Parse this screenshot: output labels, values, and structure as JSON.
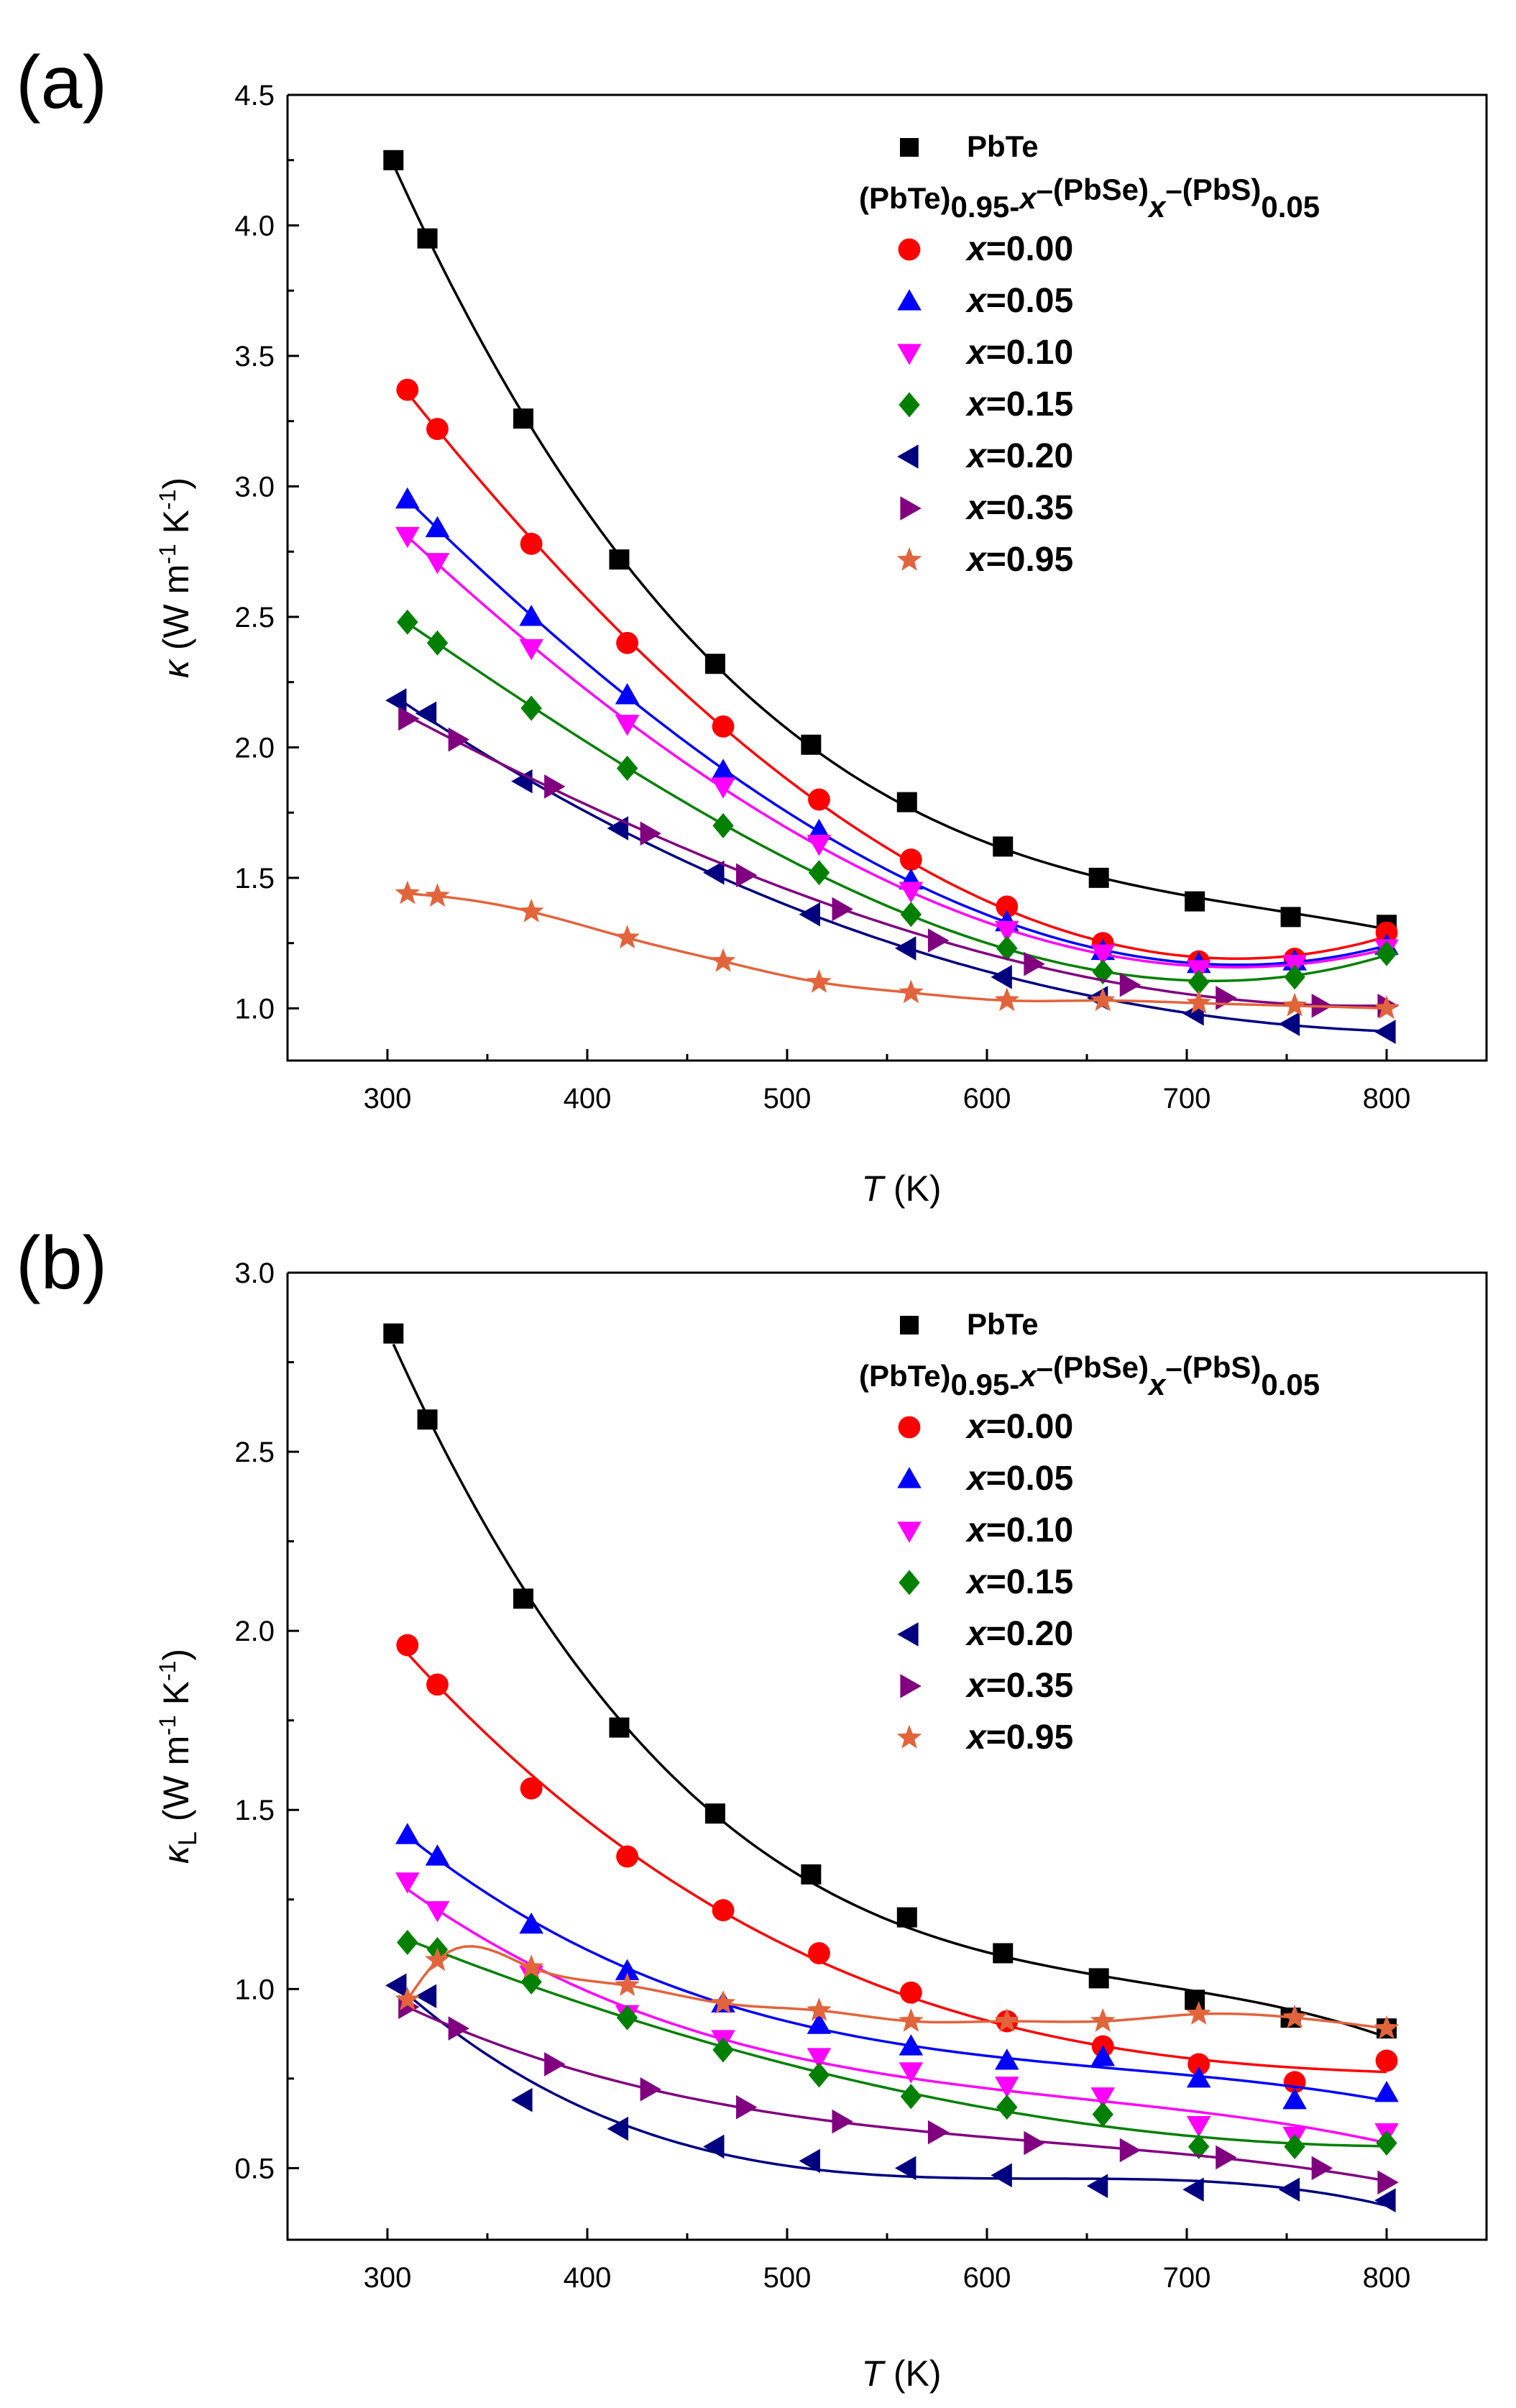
{
  "chart_data": [
    {
      "type": "scatter",
      "panel_label": "(a)",
      "xlabel": {
        "italic": "T",
        "rest": " (K)"
      },
      "ylabel": {
        "symbol": "κ",
        "sub": "",
        "unit": "(W m",
        "exp1": "-1",
        "mid": " K",
        "exp2": "-1",
        "close": ")"
      },
      "xlim": [
        250,
        850
      ],
      "ylim": [
        0.8,
        4.5
      ],
      "x_ticks": [
        300,
        400,
        500,
        600,
        700,
        800
      ],
      "y_ticks": [
        1.0,
        1.5,
        2.0,
        2.5,
        3.0,
        3.5,
        4.0,
        4.5
      ],
      "legend_position": "top-right",
      "legend_header": {
        "a": "(PbTe)",
        "a_sub": "0.95-",
        "a_sub_x": "x",
        "b": "–(PbSe)",
        "b_sub_x": "x",
        "c": "–(PbS)",
        "c_sub": "0.05"
      },
      "series": [
        {
          "name": "PbTe",
          "label_prefix": "",
          "label_value": "PbTe",
          "marker": "square",
          "color": "#000000",
          "x": [
            303,
            320,
            368,
            416,
            464,
            512,
            560,
            608,
            656,
            704,
            752,
            800
          ],
          "y": [
            4.25,
            3.95,
            3.26,
            2.72,
            2.32,
            2.01,
            1.79,
            1.62,
            1.5,
            1.41,
            1.35,
            1.32
          ]
        },
        {
          "name": "x=0.00",
          "label_prefix": "x",
          "label_value": "=0.00",
          "marker": "circle",
          "color": "#ff0000",
          "x": [
            310,
            325,
            372,
            420,
            468,
            516,
            562,
            610,
            658,
            706,
            754,
            800
          ],
          "y": [
            3.37,
            3.22,
            2.78,
            2.4,
            2.08,
            1.8,
            1.57,
            1.39,
            1.25,
            1.18,
            1.19,
            1.29
          ]
        },
        {
          "name": "x=0.05",
          "label_prefix": "x",
          "label_value": "=0.05",
          "marker": "triangle-up",
          "color": "#0000ff",
          "x": [
            310,
            325,
            372,
            420,
            468,
            516,
            562,
            610,
            658,
            706,
            754,
            800
          ],
          "y": [
            2.95,
            2.84,
            2.5,
            2.2,
            1.91,
            1.68,
            1.49,
            1.33,
            1.22,
            1.17,
            1.18,
            1.24
          ]
        },
        {
          "name": "x=0.10",
          "label_prefix": "x",
          "label_value": "=0.10",
          "marker": "triangle-down",
          "color": "#ff00ff",
          "x": [
            310,
            325,
            372,
            420,
            468,
            516,
            562,
            610,
            658,
            706,
            754,
            800
          ],
          "y": [
            2.81,
            2.71,
            2.38,
            2.09,
            1.85,
            1.63,
            1.45,
            1.3,
            1.21,
            1.15,
            1.17,
            1.23
          ]
        },
        {
          "name": "x=0.15",
          "label_prefix": "x",
          "label_value": "=0.15",
          "marker": "diamond",
          "color": "#008000",
          "x": [
            310,
            325,
            372,
            420,
            468,
            516,
            562,
            610,
            658,
            706,
            754,
            800
          ],
          "y": [
            2.48,
            2.4,
            2.15,
            1.92,
            1.7,
            1.52,
            1.36,
            1.23,
            1.14,
            1.1,
            1.12,
            1.21
          ]
        },
        {
          "name": "x=0.20",
          "label_prefix": "x",
          "label_value": "=0.20",
          "marker": "triangle-left",
          "color": "#000080",
          "x": [
            305,
            320,
            368,
            416,
            464,
            512,
            560,
            608,
            656,
            704,
            752,
            800
          ],
          "y": [
            2.18,
            2.13,
            1.87,
            1.69,
            1.52,
            1.36,
            1.23,
            1.12,
            1.04,
            0.98,
            0.94,
            0.91
          ]
        },
        {
          "name": "x=0.35",
          "label_prefix": "x",
          "label_value": "=0.35",
          "marker": "triangle-right",
          "color": "#800080",
          "x": [
            310,
            335,
            383,
            431,
            479,
            527,
            575,
            623,
            671,
            719,
            767,
            800
          ],
          "y": [
            2.11,
            2.03,
            1.85,
            1.67,
            1.51,
            1.38,
            1.26,
            1.17,
            1.09,
            1.04,
            1.01,
            1.01
          ]
        },
        {
          "name": "x=0.95",
          "label_prefix": "x",
          "label_value": "=0.95",
          "marker": "star",
          "color": "#e2643c",
          "x": [
            310,
            325,
            372,
            420,
            468,
            516,
            562,
            610,
            658,
            706,
            754,
            800
          ],
          "y": [
            1.44,
            1.43,
            1.37,
            1.27,
            1.18,
            1.1,
            1.06,
            1.03,
            1.03,
            1.02,
            1.01,
            1.0
          ]
        }
      ]
    },
    {
      "type": "scatter",
      "panel_label": "(b)",
      "xlabel": {
        "italic": "T",
        "rest": " (K)"
      },
      "ylabel": {
        "symbol": "κ",
        "sub": "L",
        "unit": "(W m",
        "exp1": "-1",
        "mid": " K",
        "exp2": "-1",
        "close": ")"
      },
      "xlim": [
        250,
        850
      ],
      "ylim": [
        0.3,
        3.0
      ],
      "x_ticks": [
        300,
        400,
        500,
        600,
        700,
        800
      ],
      "y_ticks": [
        0.5,
        1.0,
        1.5,
        2.0,
        2.5,
        3.0
      ],
      "legend_position": "top-right",
      "legend_header": {
        "a": "(PbTe)",
        "a_sub": "0.95-",
        "a_sub_x": "x",
        "b": "–(PbSe)",
        "b_sub_x": "x",
        "c": "–(PbS)",
        "c_sub": "0.05"
      },
      "series": [
        {
          "name": "PbTe",
          "label_prefix": "",
          "label_value": "PbTe",
          "marker": "square",
          "color": "#000000",
          "x": [
            303,
            320,
            368,
            416,
            464,
            512,
            560,
            608,
            656,
            704,
            752,
            800
          ],
          "y": [
            2.83,
            2.59,
            2.09,
            1.73,
            1.49,
            1.32,
            1.2,
            1.1,
            1.03,
            0.97,
            0.92,
            0.89
          ]
        },
        {
          "name": "x=0.00",
          "label_prefix": "x",
          "label_value": "=0.00",
          "marker": "circle",
          "color": "#ff0000",
          "x": [
            310,
            325,
            372,
            420,
            468,
            516,
            562,
            610,
            658,
            706,
            754,
            800
          ],
          "y": [
            1.96,
            1.85,
            1.56,
            1.37,
            1.22,
            1.1,
            0.99,
            0.91,
            0.84,
            0.79,
            0.74,
            0.8
          ]
        },
        {
          "name": "x=0.05",
          "label_prefix": "x",
          "label_value": "=0.05",
          "marker": "triangle-up",
          "color": "#0000ff",
          "x": [
            310,
            325,
            372,
            420,
            468,
            516,
            562,
            610,
            658,
            706,
            754,
            800
          ],
          "y": [
            1.43,
            1.37,
            1.18,
            1.05,
            0.96,
            0.9,
            0.84,
            0.8,
            0.81,
            0.75,
            0.69,
            0.71
          ]
        },
        {
          "name": "x=0.10",
          "label_prefix": "x",
          "label_value": "=0.10",
          "marker": "triangle-down",
          "color": "#ff00ff",
          "x": [
            310,
            325,
            372,
            420,
            468,
            516,
            562,
            610,
            658,
            706,
            754,
            800
          ],
          "y": [
            1.3,
            1.22,
            1.04,
            0.93,
            0.86,
            0.81,
            0.77,
            0.73,
            0.7,
            0.62,
            0.59,
            0.6
          ]
        },
        {
          "name": "x=0.15",
          "label_prefix": "x",
          "label_value": "=0.15",
          "marker": "diamond",
          "color": "#008000",
          "x": [
            310,
            325,
            372,
            420,
            468,
            516,
            562,
            610,
            658,
            706,
            754,
            800
          ],
          "y": [
            1.13,
            1.11,
            1.02,
            0.92,
            0.83,
            0.76,
            0.7,
            0.67,
            0.65,
            0.56,
            0.56,
            0.57
          ]
        },
        {
          "name": "x=0.20",
          "label_prefix": "x",
          "label_value": "=0.20",
          "marker": "triangle-left",
          "color": "#000080",
          "x": [
            305,
            320,
            368,
            416,
            464,
            512,
            560,
            608,
            656,
            704,
            752,
            800
          ],
          "y": [
            1.01,
            0.98,
            0.69,
            0.61,
            0.56,
            0.52,
            0.5,
            0.48,
            0.45,
            0.44,
            0.44,
            0.41
          ]
        },
        {
          "name": "x=0.35",
          "label_prefix": "x",
          "label_value": "=0.35",
          "marker": "triangle-right",
          "color": "#800080",
          "x": [
            310,
            335,
            383,
            431,
            479,
            527,
            575,
            623,
            671,
            719,
            767,
            800
          ],
          "y": [
            0.95,
            0.89,
            0.79,
            0.72,
            0.67,
            0.63,
            0.6,
            0.57,
            0.55,
            0.53,
            0.5,
            0.46
          ]
        },
        {
          "name": "x=0.95",
          "label_prefix": "x",
          "label_value": "=0.95",
          "marker": "star",
          "color": "#e2643c",
          "x": [
            310,
            325,
            372,
            420,
            468,
            516,
            562,
            610,
            658,
            706,
            754,
            800
          ],
          "y": [
            0.97,
            1.08,
            1.06,
            1.01,
            0.96,
            0.94,
            0.91,
            0.91,
            0.91,
            0.93,
            0.92,
            0.89
          ]
        }
      ]
    }
  ]
}
